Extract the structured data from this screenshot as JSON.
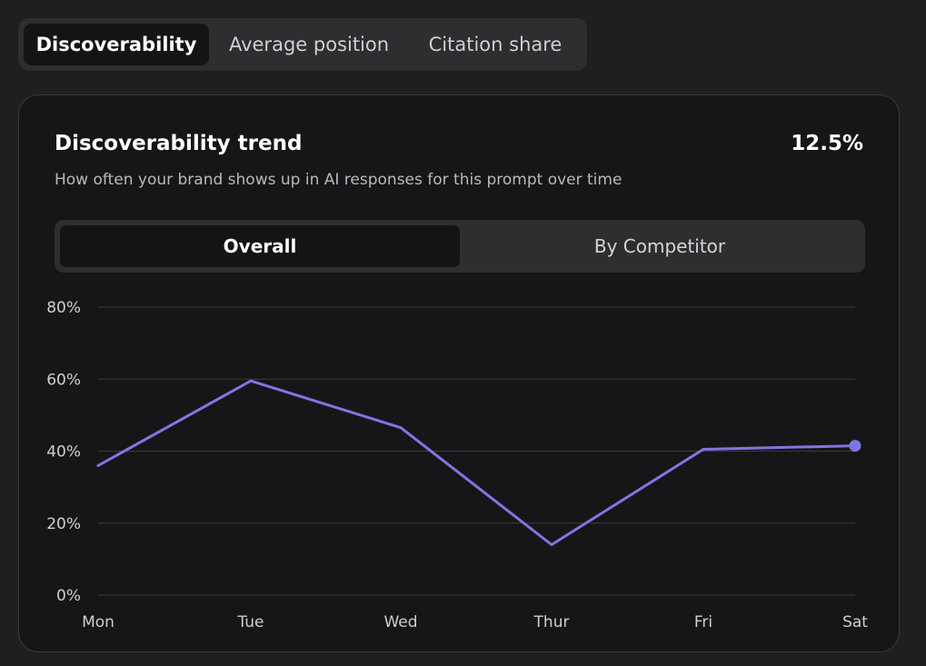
{
  "metric_tabs": {
    "discoverability": "Discoverability",
    "average_position": "Average position",
    "citation_share": "Citation share"
  },
  "card": {
    "title": "Discoverability trend",
    "value": "12.5%",
    "subtitle": "How often your brand shows up in AI responses for this prompt over time"
  },
  "segments": {
    "overall": "Overall",
    "by_competitor": "By Competitor"
  },
  "colors": {
    "line": "#7f76e3",
    "grid": "#3b3b3f",
    "active_tab_bg": "#141416"
  },
  "chart_data": {
    "type": "line",
    "categories": [
      "Mon",
      "Tue",
      "Wed",
      "Thur",
      "Fri",
      "Sat"
    ],
    "series": [
      {
        "values": [
          36,
          59.5,
          46.5,
          14,
          40.5,
          41.5
        ]
      }
    ],
    "ylim": [
      0,
      80
    ],
    "yticks": [
      0,
      20,
      40,
      60,
      80
    ],
    "ytick_labels": [
      "0%",
      "20%",
      "40%",
      "60%",
      "80%"
    ],
    "grid": true,
    "last_point_marker": true
  }
}
